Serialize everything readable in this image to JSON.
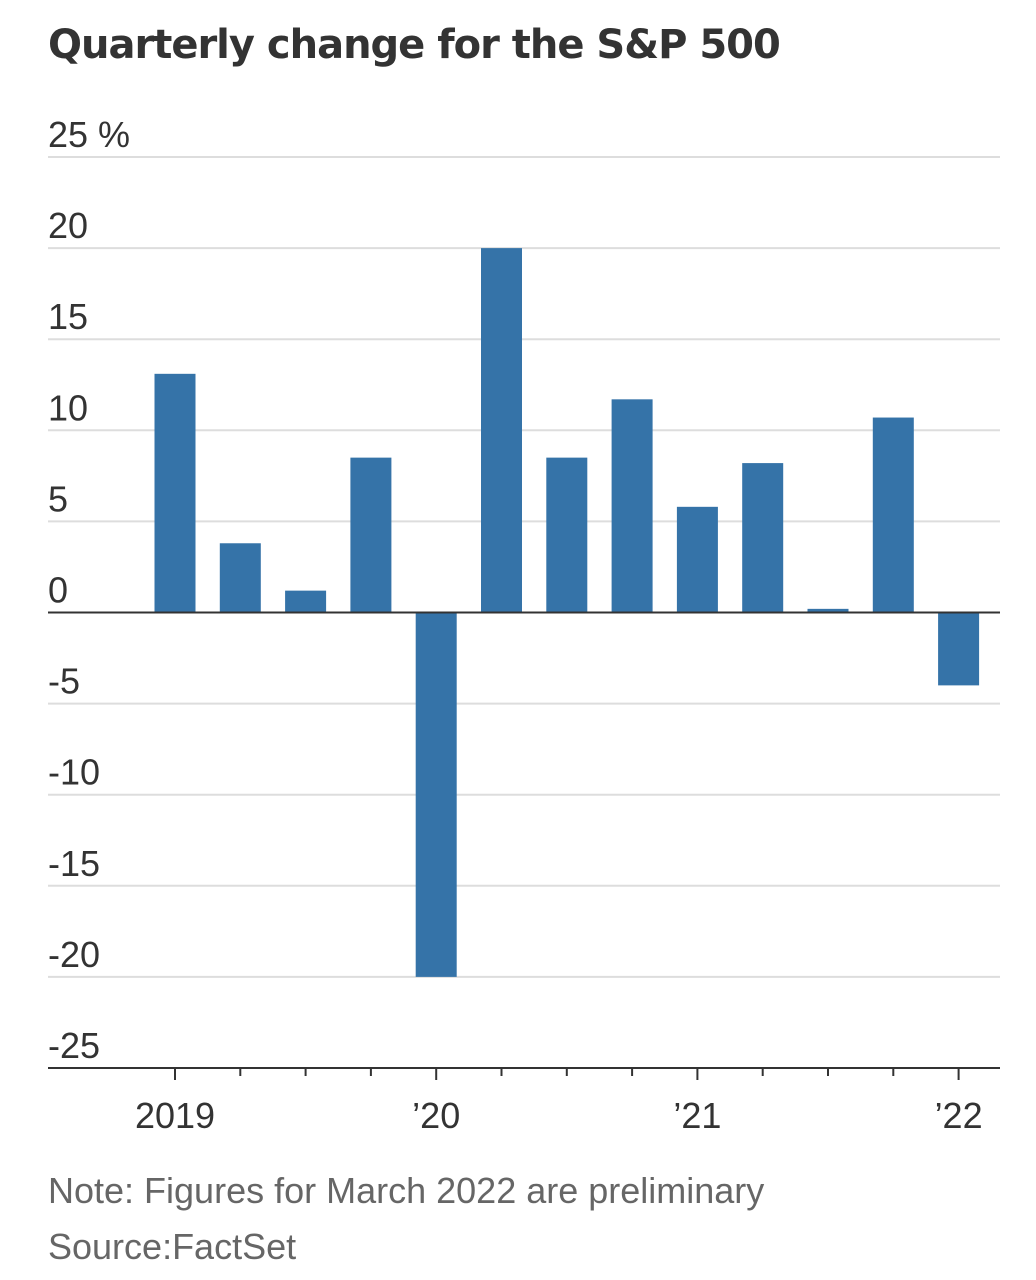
{
  "chart_data": {
    "type": "bar",
    "title": "Quarterly change for the S&P 500",
    "ylabel": "",
    "xlabel": "",
    "y_unit": "%",
    "ylim": [
      -25,
      25
    ],
    "y_ticks": [
      25,
      20,
      15,
      10,
      5,
      0,
      -5,
      -10,
      -15,
      -20,
      -25
    ],
    "y_tick_labels": [
      "25 %",
      "20",
      "15",
      "10",
      "5",
      "0",
      "-5",
      "-10",
      "-15",
      "-20",
      "-25"
    ],
    "categories": [
      "2019 Q1",
      "2019 Q2",
      "2019 Q3",
      "2019 Q4",
      "2020 Q1",
      "2020 Q2",
      "2020 Q3",
      "2020 Q4",
      "2021 Q1",
      "2021 Q2",
      "2021 Q3",
      "2021 Q4",
      "2022 Q1"
    ],
    "values": [
      13.1,
      3.8,
      1.2,
      8.5,
      -20.0,
      20.0,
      8.5,
      11.7,
      5.8,
      8.2,
      0.2,
      10.7,
      -4.0
    ],
    "x_tick_labels": [
      "2019",
      "’20",
      "’21",
      "’22"
    ],
    "grid": true,
    "bar_color": "#3573a8",
    "grid_color": "#dddddd",
    "axis_color": "#333333"
  },
  "footer": {
    "note": "Note: Figures for March 2022 are preliminary",
    "source": "Source:FactSet"
  }
}
